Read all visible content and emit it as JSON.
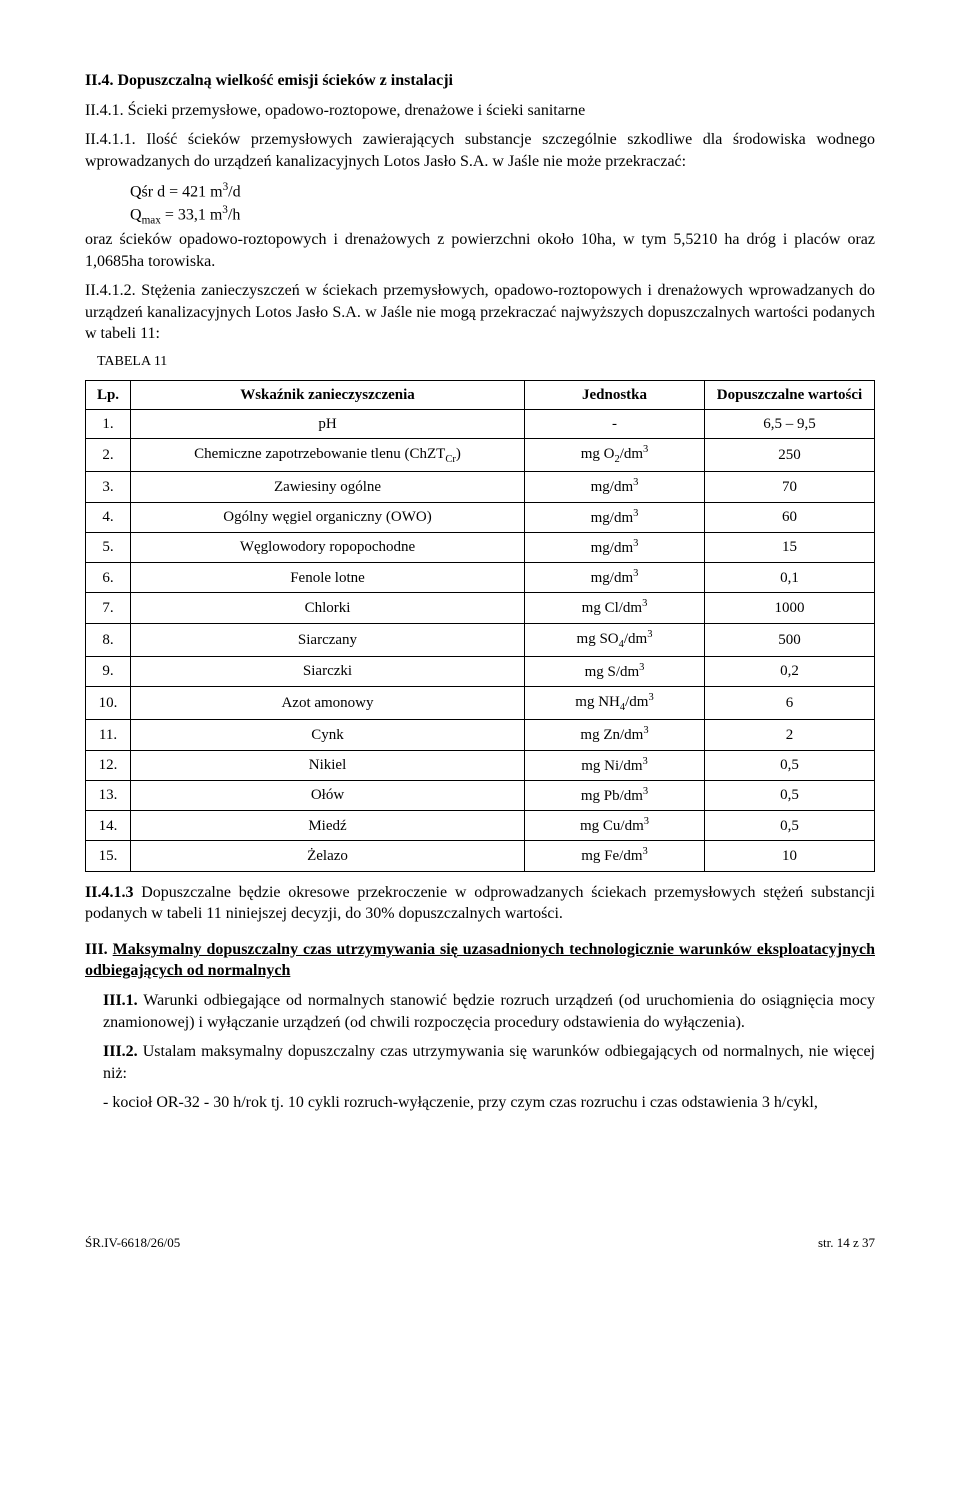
{
  "sec_II4": {
    "title": "II.4. Dopuszczalną wielkość emisji ścieków z instalacji"
  },
  "sec_II41": {
    "title": "II.4.1. Ścieki przemysłowe, opadowo-roztopowe, drenażowe i ścieki sanitarne"
  },
  "sec_II411": {
    "lead": "II.4.1.1. Ilość ścieków przemysłowych zawierających substancje szczególnie szkodliwe dla środowiska wodnego wprowadzanych do urządzeń kanalizacyjnych Lotos Jasło S.A. w Jaśle nie może przekraczać:",
    "q1": "Qśr d  =  421 m",
    "q1_exp": "3",
    "q1_suffix": "/d",
    "q2_pre": "Q",
    "q2_sub": "max",
    "q2_mid": " = 33,1 m",
    "q2_exp": "3",
    "q2_suffix": "/h",
    "tail": "oraz ścieków opadowo-roztopowych i drenażowych z powierzchni około 10ha, w tym 5,5210 ha dróg i placów oraz 1,0685ha torowiska."
  },
  "sec_II412": {
    "text": "II.4.1.2. Stężenia zanieczyszczeń w ściekach przemysłowych, opadowo-roztopowych i drenażowych wprowadzanych do urządzeń kanalizacyjnych Lotos Jasło S.A. w Jaśle nie mogą przekraczać najwyższych dopuszczalnych wartości podanych w tabeli 11:"
  },
  "table11": {
    "label": "TABELA 11",
    "headers": {
      "lp": "Lp.",
      "ind": "Wskaźnik zanieczyszczenia",
      "unit": "Jednostka",
      "val": "Dopuszczalne wartości"
    },
    "rows": [
      {
        "lp": "1.",
        "ind": "pH",
        "unit": "-",
        "val": "6,5 – 9,5"
      },
      {
        "lp": "2.",
        "ind": "Chemiczne zapotrzebowanie tlenu (ChZT",
        "ind_sub": "Cr",
        "ind_suffix": ")",
        "unit_pre": "mg O",
        "unit_sub": "2",
        "unit_mid": "/dm",
        "unit_sup": "3",
        "val": "250"
      },
      {
        "lp": "3.",
        "ind": "Zawiesiny ogólne",
        "unit_pre": "mg/dm",
        "unit_sup": "3",
        "val": "70"
      },
      {
        "lp": "4.",
        "ind": "Ogólny węgiel organiczny (OWO)",
        "unit_pre": "mg/dm",
        "unit_sup": "3",
        "val": "60"
      },
      {
        "lp": "5.",
        "ind": "Węglowodory ropopochodne",
        "unit_pre": "mg/dm",
        "unit_sup": "3",
        "val": "15"
      },
      {
        "lp": "6.",
        "ind": "Fenole lotne",
        "unit_pre": "mg/dm",
        "unit_sup": "3",
        "val": "0,1"
      },
      {
        "lp": "7.",
        "ind": "Chlorki",
        "unit_pre": "mg Cl/dm",
        "unit_sup": "3",
        "val": "1000"
      },
      {
        "lp": "8.",
        "ind": "Siarczany",
        "unit_pre": "mg SO",
        "unit_sub": "4",
        "unit_mid": "/dm",
        "unit_sup": "3",
        "val": "500"
      },
      {
        "lp": "9.",
        "ind": "Siarczki",
        "unit_pre": "mg S/dm",
        "unit_sup": "3",
        "val": "0,2"
      },
      {
        "lp": "10.",
        "ind": "Azot amonowy",
        "unit_pre": "mg NH",
        "unit_sub": "4",
        "unit_mid": "/dm",
        "unit_sup": "3",
        "val": "6"
      },
      {
        "lp": "11.",
        "ind": "Cynk",
        "unit_pre": "mg Zn/dm",
        "unit_sup": "3",
        "val": "2"
      },
      {
        "lp": "12.",
        "ind": "Nikiel",
        "unit_pre": "mg Ni/dm",
        "unit_sup": "3",
        "val": "0,5"
      },
      {
        "lp": "13.",
        "ind": "Ołów",
        "unit_pre": "mg Pb/dm",
        "unit_sup": "3",
        "val": "0,5"
      },
      {
        "lp": "14.",
        "ind": "Miedź",
        "unit_pre": "mg Cu/dm",
        "unit_sup": "3",
        "val": "0,5"
      },
      {
        "lp": "15.",
        "ind": "Żelazo",
        "unit_pre": "mg Fe/dm",
        "unit_sup": "3",
        "val": "10"
      }
    ]
  },
  "sec_II413": {
    "lead": "II.4.1.3",
    "text": " Dopuszczalne będzie okresowe przekroczenie w odprowadzanych ściekach przemysłowych stężeń substancji podanych w tabeli 11 niniejszej decyzji, do 30% dopuszczalnych wartości."
  },
  "sec_III": {
    "lead": "III. ",
    "title": "Maksymalny dopuszczalny czas utrzymywania się uzasadnionych technologicznie warunków eksploatacyjnych odbiegających od normalnych"
  },
  "sec_III1": {
    "lead": "III.1.",
    "text": " Warunki odbiegające od normalnych stanowić będzie rozruch urządzeń (od uruchomienia do osiągnięcia mocy znamionowej) i wyłączanie urządzeń (od chwili rozpoczęcia procedury odstawienia do wyłączenia)."
  },
  "sec_III2": {
    "lead": "III.2.",
    "text": " Ustalam maksymalny dopuszczalny czas utrzymywania się warunków odbiegających od normalnych, nie więcej niż:",
    "bullet": "- kocioł OR-32 - 30 h/rok tj. 10 cykli rozruch-wyłączenie, przy czym czas rozruchu i czas odstawienia 3 h/cykl,"
  },
  "footer": {
    "left": "ŚR.IV-6618/26/05",
    "right": "str. 14 z 37"
  }
}
